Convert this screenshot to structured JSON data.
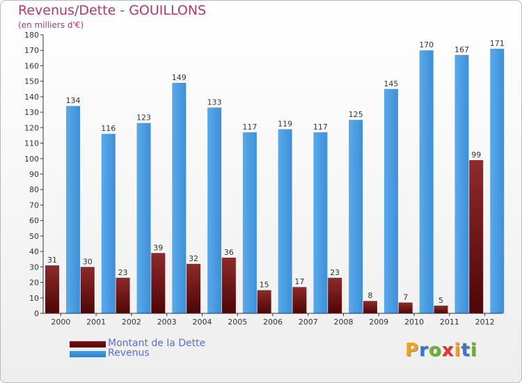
{
  "header": {
    "title": "Revenus/Dette - GOUILLONS",
    "subtitle": "(en milliers d'€)"
  },
  "colors": {
    "dette": "#7a1414",
    "revenus": "#4a9be0",
    "title": "#b4366d",
    "legend_text": "#5b6de0"
  },
  "legend": {
    "dette_label": "Montant de la Dette",
    "revenus_label": "Revenus",
    "placement": "bottom-left"
  },
  "logo": {
    "text": "Proxiti",
    "letter_colors": [
      "#f2a11c",
      "#3a78c9",
      "#6ab42d",
      "#e3342f",
      "#f2a11c",
      "#3a78c9",
      "#6ab42d"
    ]
  },
  "chart_data": {
    "type": "bar",
    "title": "Revenus/Dette - GOUILLONS",
    "subtitle": "(en milliers d'€)",
    "categories": [
      "2000",
      "2001",
      "2002",
      "2003",
      "2004",
      "2005",
      "2006",
      "2007",
      "2008",
      "2009",
      "2010",
      "2011",
      "2012"
    ],
    "series": [
      {
        "name": "Montant de la Dette",
        "values": [
          31,
          30,
          23,
          39,
          32,
          36,
          15,
          17,
          23,
          8,
          7,
          5,
          99
        ]
      },
      {
        "name": "Revenus",
        "values": [
          134,
          116,
          123,
          149,
          133,
          117,
          119,
          117,
          125,
          145,
          170,
          167,
          171
        ]
      }
    ],
    "ylim": [
      0,
      180
    ],
    "yticks": [
      0,
      10,
      20,
      30,
      40,
      50,
      60,
      70,
      80,
      90,
      100,
      110,
      120,
      130,
      140,
      150,
      160,
      170,
      180
    ],
    "grid": false,
    "legend_placement": "bottom-left"
  }
}
